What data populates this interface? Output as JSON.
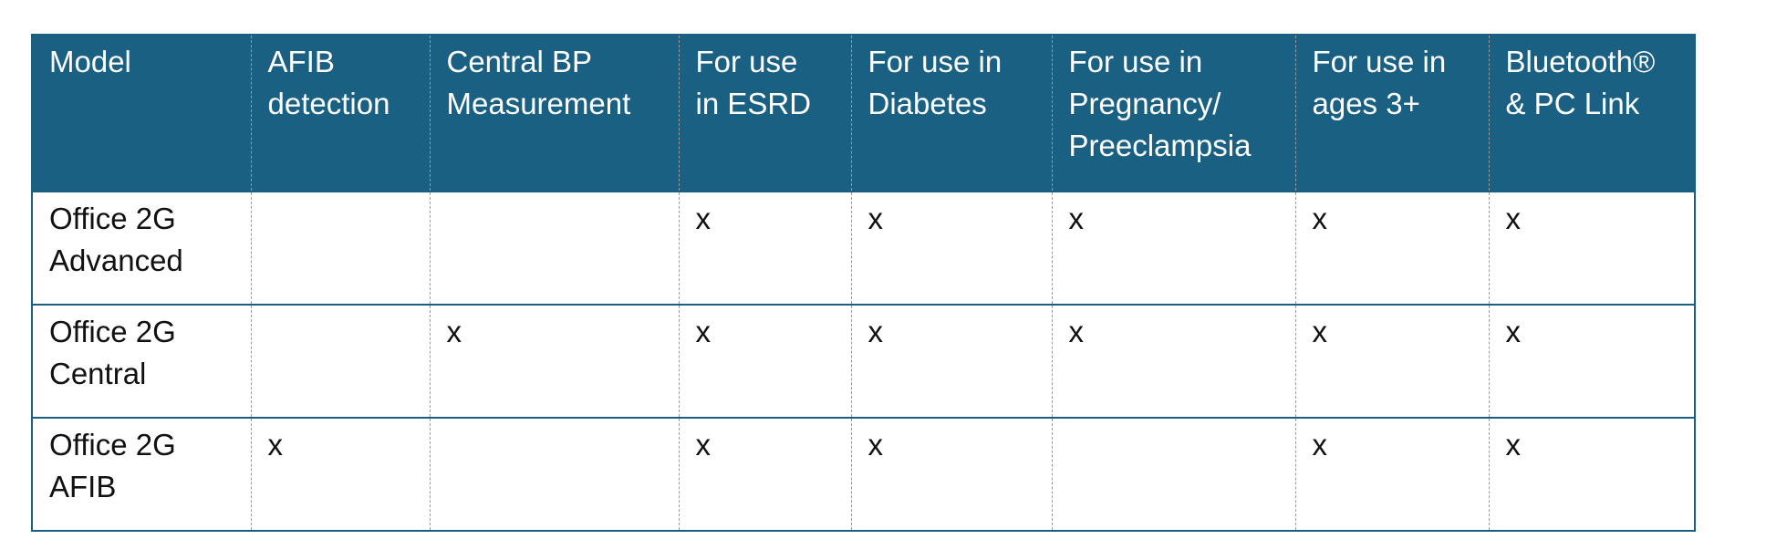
{
  "table": {
    "header": [
      [
        "Model"
      ],
      [
        "AFIB",
        "detection"
      ],
      [
        "Central BP",
        "Measurement"
      ],
      [
        "For use",
        "in ESRD"
      ],
      [
        "For use in",
        "Diabetes"
      ],
      [
        "For use in",
        "Pregnancy/",
        "Preeclampsia"
      ],
      [
        "For use in",
        "ages 3+"
      ],
      [
        "Bluetooth®",
        "& PC Link"
      ]
    ],
    "rows": [
      {
        "model": [
          "Office 2G",
          "Advanced"
        ],
        "cells": [
          null,
          null,
          "x",
          "x",
          "x",
          "x",
          "x"
        ]
      },
      {
        "model": [
          "Office 2G",
          "Central"
        ],
        "cells": [
          null,
          "x",
          "x",
          "x",
          "x",
          "x",
          "x"
        ]
      },
      {
        "model": [
          "Office 2G",
          "AFIB"
        ],
        "cells": [
          "x",
          null,
          "x",
          "x",
          null,
          "x",
          "x"
        ]
      }
    ]
  }
}
